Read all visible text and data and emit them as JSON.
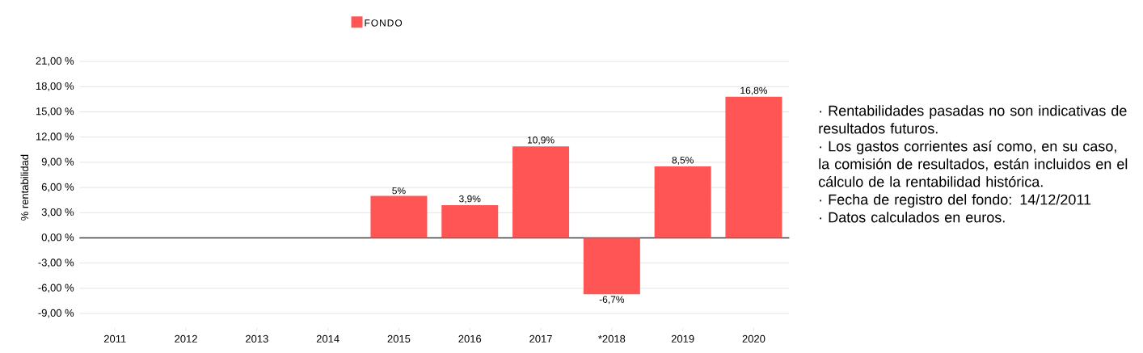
{
  "chart_data": {
    "type": "bar",
    "categories": [
      "2011",
      "2012",
      "2013",
      "2014",
      "2015",
      "2016",
      "2017",
      "*2018",
      "2019",
      "2020"
    ],
    "series": [
      {
        "name": "FONDO",
        "color": "#ff5555",
        "values": [
          null,
          null,
          null,
          null,
          5,
          3.9,
          10.9,
          -6.7,
          8.5,
          16.8
        ],
        "value_labels": [
          null,
          null,
          null,
          null,
          "5%",
          "3,9%",
          "10,9%",
          "-6,7%",
          "8,5%",
          "16,8%"
        ]
      }
    ],
    "ylabel": "% rentabilidad",
    "ylim": [
      -9,
      21
    ],
    "yticks": [
      {
        "value": -9,
        "label": "-9,00 %"
      },
      {
        "value": -6,
        "label": "-6,00 %"
      },
      {
        "value": -3,
        "label": "-3,00 %"
      },
      {
        "value": 0,
        "label": "0,00 %"
      },
      {
        "value": 3,
        "label": "3,00 %"
      },
      {
        "value": 6,
        "label": "6,00 %"
      },
      {
        "value": 9,
        "label": "9,00 %"
      },
      {
        "value": 12,
        "label": "12,00 %"
      },
      {
        "value": 15,
        "label": "15,00 %"
      },
      {
        "value": 18,
        "label": "18,00 %"
      },
      {
        "value": 21,
        "label": "21,00 %"
      }
    ],
    "grid": "y",
    "legend": "top",
    "annotations": [
      "· Rentabilidades pasadas no son indicativas de resultados futuros.",
      "· Los gastos corrientes así como, en su caso, la comisión de resultados, están incluidos en el cálculo de la rentabilidad histórica.",
      "· Fecha de registro del fondo: 14/12/2011",
      "· Datos calculados en euros."
    ]
  }
}
